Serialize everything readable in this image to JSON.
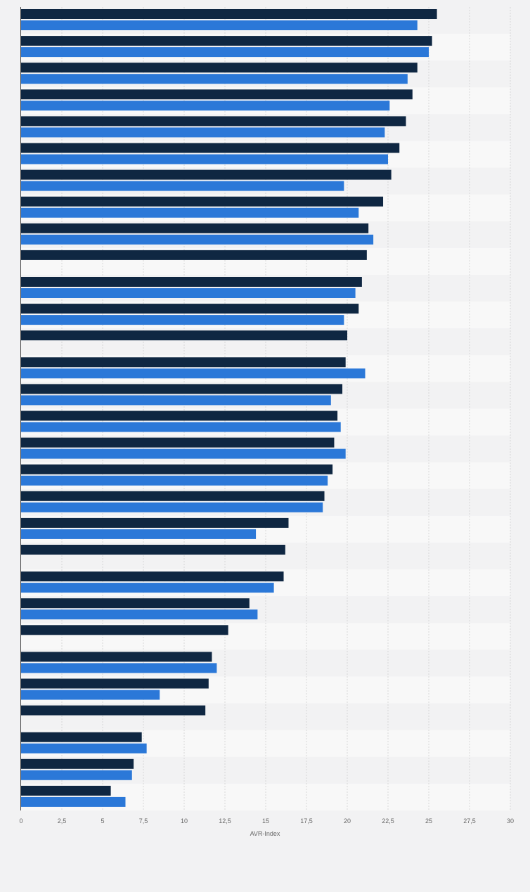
{
  "chart_data": {
    "type": "bar",
    "orientation": "horizontal",
    "xlabel": "AVR-Index",
    "xlim": [
      0,
      30
    ],
    "xticks": [
      0,
      2.5,
      5,
      7.5,
      10,
      12.5,
      15,
      17.5,
      20,
      22.5,
      25,
      27.5,
      30
    ],
    "xtick_labels": [
      "0",
      "2,5",
      "5",
      "7,5",
      "10",
      "12,5",
      "15",
      "17,5",
      "20",
      "22,5",
      "25",
      "27,5",
      "30"
    ],
    "grid": true,
    "legend": "none visible",
    "series": [
      {
        "color": "#0f2742",
        "values": [
          25.5,
          25.2,
          24.3,
          24.0,
          23.6,
          23.2,
          22.7,
          22.2,
          21.3,
          21.2,
          20.9,
          20.7,
          20.0,
          19.9,
          19.7,
          19.4,
          19.2,
          19.1,
          18.6,
          16.4,
          16.2,
          16.1,
          14.0,
          12.7,
          11.7,
          11.5,
          11.3,
          7.4,
          6.9,
          5.5
        ]
      },
      {
        "color": "#2b78d8",
        "values": [
          24.3,
          25.0,
          23.7,
          22.6,
          22.3,
          22.5,
          19.8,
          20.7,
          21.6,
          null,
          20.5,
          19.8,
          null,
          21.1,
          19.0,
          19.6,
          19.9,
          18.8,
          18.5,
          14.4,
          null,
          15.5,
          14.5,
          null,
          12.0,
          8.5,
          null,
          7.7,
          6.8,
          6.4
        ]
      }
    ]
  }
}
